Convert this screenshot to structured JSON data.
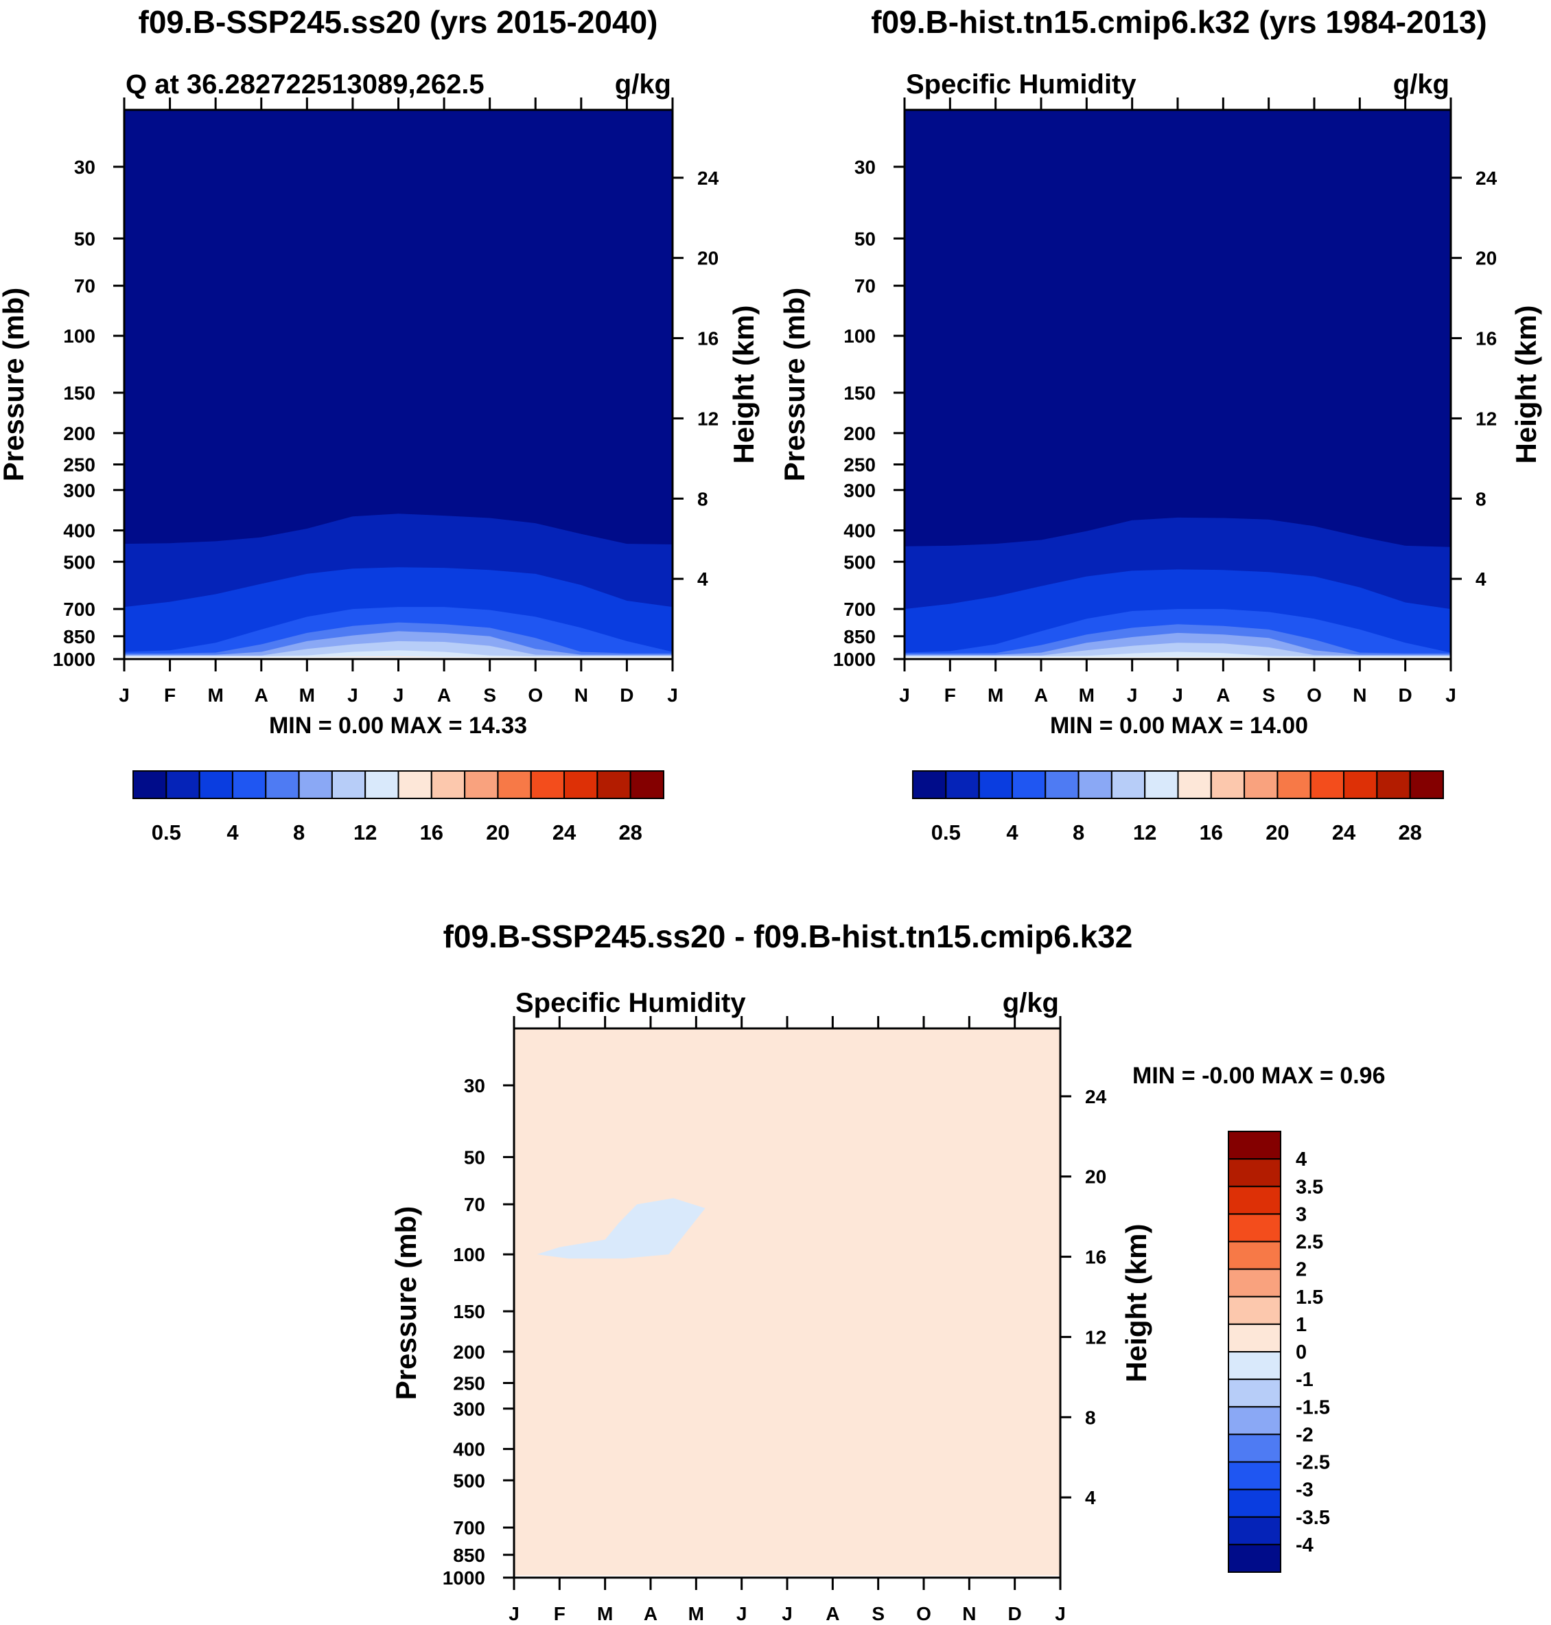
{
  "months": [
    "J",
    "F",
    "M",
    "A",
    "M",
    "J",
    "J",
    "A",
    "S",
    "O",
    "N",
    "D",
    "J"
  ],
  "pressure_ticks": [
    "30",
    "50",
    "70",
    "100",
    "150",
    "200",
    "250",
    "300",
    "400",
    "500",
    "700",
    "850",
    "1000"
  ],
  "height_ticks": [
    "24",
    "20",
    "16",
    "12",
    "8",
    "4"
  ],
  "ylabel": "Pressure (mb)",
  "ylabel_right": "Height (km)",
  "seq_colors": [
    "#000c8a",
    "#0523b8",
    "#0a3de0",
    "#1f56f2",
    "#4e7bf3",
    "#8aa8f5",
    "#b7cdf8",
    "#d9e9fb",
    "#fde7d8",
    "#fcc8ad",
    "#f9a27e",
    "#f77947",
    "#f34d1c",
    "#dd3006",
    "#b31c00",
    "#840000"
  ],
  "seq_labels": [
    "0.5",
    "4",
    "8",
    "12",
    "16",
    "20",
    "24",
    "28"
  ],
  "diff_colors": [
    "#000c8a",
    "#0523b8",
    "#0a3de0",
    "#1f56f2",
    "#4e7bf3",
    "#8aa8f5",
    "#b7cdf8",
    "#d9e9fb",
    "#fde7d8",
    "#fcc8ad",
    "#f9a27e",
    "#f77947",
    "#f34d1c",
    "#dd3006",
    "#b31c00",
    "#840000"
  ],
  "diff_labels": [
    "-4",
    "-3.5",
    "-3",
    "-2.5",
    "-2",
    "-1.5",
    "-1",
    "0",
    "1",
    "1.5",
    "2",
    "2.5",
    "3",
    "3.5",
    "4"
  ],
  "panels": [
    {
      "title": "f09.B-SSP245.ss20 (yrs 2015-2040)",
      "subtitle_left": "Q at 36.282722513089,262.5",
      "subtitle_right": "g/kg",
      "stats": "MIN =   0.00 MAX =  14.33"
    },
    {
      "title": "f09.B-hist.tn15.cmip6.k32 (yrs 1984-2013)",
      "subtitle_left": "Specific Humidity",
      "subtitle_right": "g/kg",
      "stats": "MIN =   0.00 MAX =  14.00"
    },
    {
      "title": "f09.B-SSP245.ss20 - f09.B-hist.tn15.cmip6.k32",
      "subtitle_left": "Specific Humidity",
      "subtitle_right": "g/kg",
      "stats": "MIN =  -0.00 MAX =   0.96"
    }
  ],
  "chart_data": [
    {
      "type": "heatmap",
      "title": "f09.B-SSP245.ss20 (yrs 2015-2040)",
      "variable": "Q at 36.282722513089,262.5",
      "units": "g/kg",
      "x": [
        "J",
        "F",
        "M",
        "A",
        "M",
        "J",
        "J",
        "A",
        "S",
        "O",
        "N",
        "D",
        "J"
      ],
      "xlabel": "",
      "ylabel": "Pressure (mb)",
      "ylabel_right": "Height (km)",
      "ylim": [
        1000,
        20
      ],
      "y_scale": "log",
      "levels": [
        0.5,
        2,
        4,
        6,
        8,
        10,
        12,
        14,
        16,
        18,
        20,
        22,
        24,
        26,
        28
      ],
      "contours": [
        {
          "level": 0.5,
          "pressure": [
            440,
            438,
            432,
            420,
            395,
            362,
            355,
            360,
            366,
            380,
            410,
            440,
            442
          ]
        },
        {
          "level": 2,
          "pressure": [
            690,
            665,
            630,
            585,
            545,
            525,
            520,
            522,
            530,
            545,
            590,
            660,
            690
          ]
        },
        {
          "level": 4,
          "pressure": [
            950,
            940,
            890,
            810,
            740,
            700,
            690,
            690,
            705,
            740,
            800,
            880,
            950
          ]
        },
        {
          "level": 6,
          "pressure": [
            960,
            960,
            955,
            900,
            830,
            790,
            770,
            780,
            800,
            860,
            950,
            960,
            960
          ]
        },
        {
          "level": 8,
          "pressure": [
            970,
            970,
            970,
            950,
            880,
            845,
            820,
            830,
            850,
            930,
            970,
            970,
            970
          ]
        },
        {
          "level": 10,
          "pressure": [
            975,
            975,
            975,
            975,
            930,
            900,
            880,
            885,
            910,
            970,
            975,
            975,
            975
          ]
        },
        {
          "level": 12,
          "pressure": [
            980,
            980,
            980,
            980,
            975,
            950,
            940,
            950,
            975,
            980,
            980,
            980,
            980
          ]
        },
        {
          "level": 14,
          "pressure": [
            985,
            985,
            985,
            985,
            985,
            982,
            980,
            985,
            985,
            985,
            985,
            985,
            985
          ]
        }
      ],
      "min": 0.0,
      "max": 14.33
    },
    {
      "type": "heatmap",
      "title": "f09.B-hist.tn15.cmip6.k32 (yrs 1984-2013)",
      "variable": "Specific Humidity",
      "units": "g/kg",
      "x": [
        "J",
        "F",
        "M",
        "A",
        "M",
        "J",
        "J",
        "A",
        "S",
        "O",
        "N",
        "D",
        "J"
      ],
      "xlabel": "",
      "ylabel": "Pressure (mb)",
      "ylabel_right": "Height (km)",
      "ylim": [
        1000,
        20
      ],
      "y_scale": "log",
      "levels": [
        0.5,
        2,
        4,
        6,
        8,
        10,
        12,
        14,
        16,
        18,
        20,
        22,
        24,
        26,
        28
      ],
      "contours": [
        {
          "level": 0.5,
          "pressure": [
            448,
            446,
            440,
            428,
            402,
            372,
            365,
            366,
            370,
            388,
            418,
            446,
            450
          ]
        },
        {
          "level": 2,
          "pressure": [
            700,
            675,
            640,
            595,
            555,
            533,
            528,
            530,
            538,
            555,
            600,
            668,
            700
          ]
        },
        {
          "level": 4,
          "pressure": [
            955,
            945,
            900,
            820,
            750,
            710,
            700,
            700,
            715,
            750,
            810,
            890,
            955
          ]
        },
        {
          "level": 6,
          "pressure": [
            960,
            960,
            958,
            905,
            840,
            800,
            780,
            790,
            810,
            870,
            955,
            960,
            960
          ]
        },
        {
          "level": 8,
          "pressure": [
            970,
            970,
            970,
            955,
            890,
            855,
            830,
            840,
            860,
            940,
            970,
            970,
            970
          ]
        },
        {
          "level": 10,
          "pressure": [
            975,
            975,
            975,
            975,
            940,
            910,
            890,
            895,
            920,
            972,
            975,
            975,
            975
          ]
        },
        {
          "level": 12,
          "pressure": [
            980,
            980,
            980,
            980,
            977,
            960,
            950,
            958,
            977,
            980,
            980,
            980,
            980
          ]
        }
      ],
      "min": 0.0,
      "max": 14.0
    },
    {
      "type": "heatmap",
      "title": "f09.B-SSP245.ss20 - f09.B-hist.tn15.cmip6.k32",
      "variable": "Specific Humidity",
      "units": "g/kg",
      "x": [
        "J",
        "F",
        "M",
        "A",
        "M",
        "J",
        "J",
        "A",
        "S",
        "O",
        "N",
        "D",
        "J"
      ],
      "xlabel": "",
      "ylabel": "Pressure (mb)",
      "ylabel_right": "Height (km)",
      "ylim": [
        1000,
        20
      ],
      "y_scale": "log",
      "levels": [
        -4,
        -3.5,
        -3,
        -2.5,
        -2,
        -1.5,
        -1,
        0,
        1,
        1.5,
        2,
        2.5,
        3,
        3.5,
        4
      ],
      "background_range": [
        0,
        1
      ],
      "regions": [
        {
          "range": [
            -1,
            0
          ],
          "month_index": [
            0.5,
            1.0,
            2.0,
            2.3,
            2.7,
            3.5,
            4.2,
            3.4,
            2.4,
            1.2,
            0.5
          ],
          "pressure": [
            100,
            95,
            90,
            80,
            70,
            67,
            72,
            100,
            103,
            103,
            100
          ]
        }
      ],
      "min": -0.0,
      "max": 0.96
    }
  ]
}
